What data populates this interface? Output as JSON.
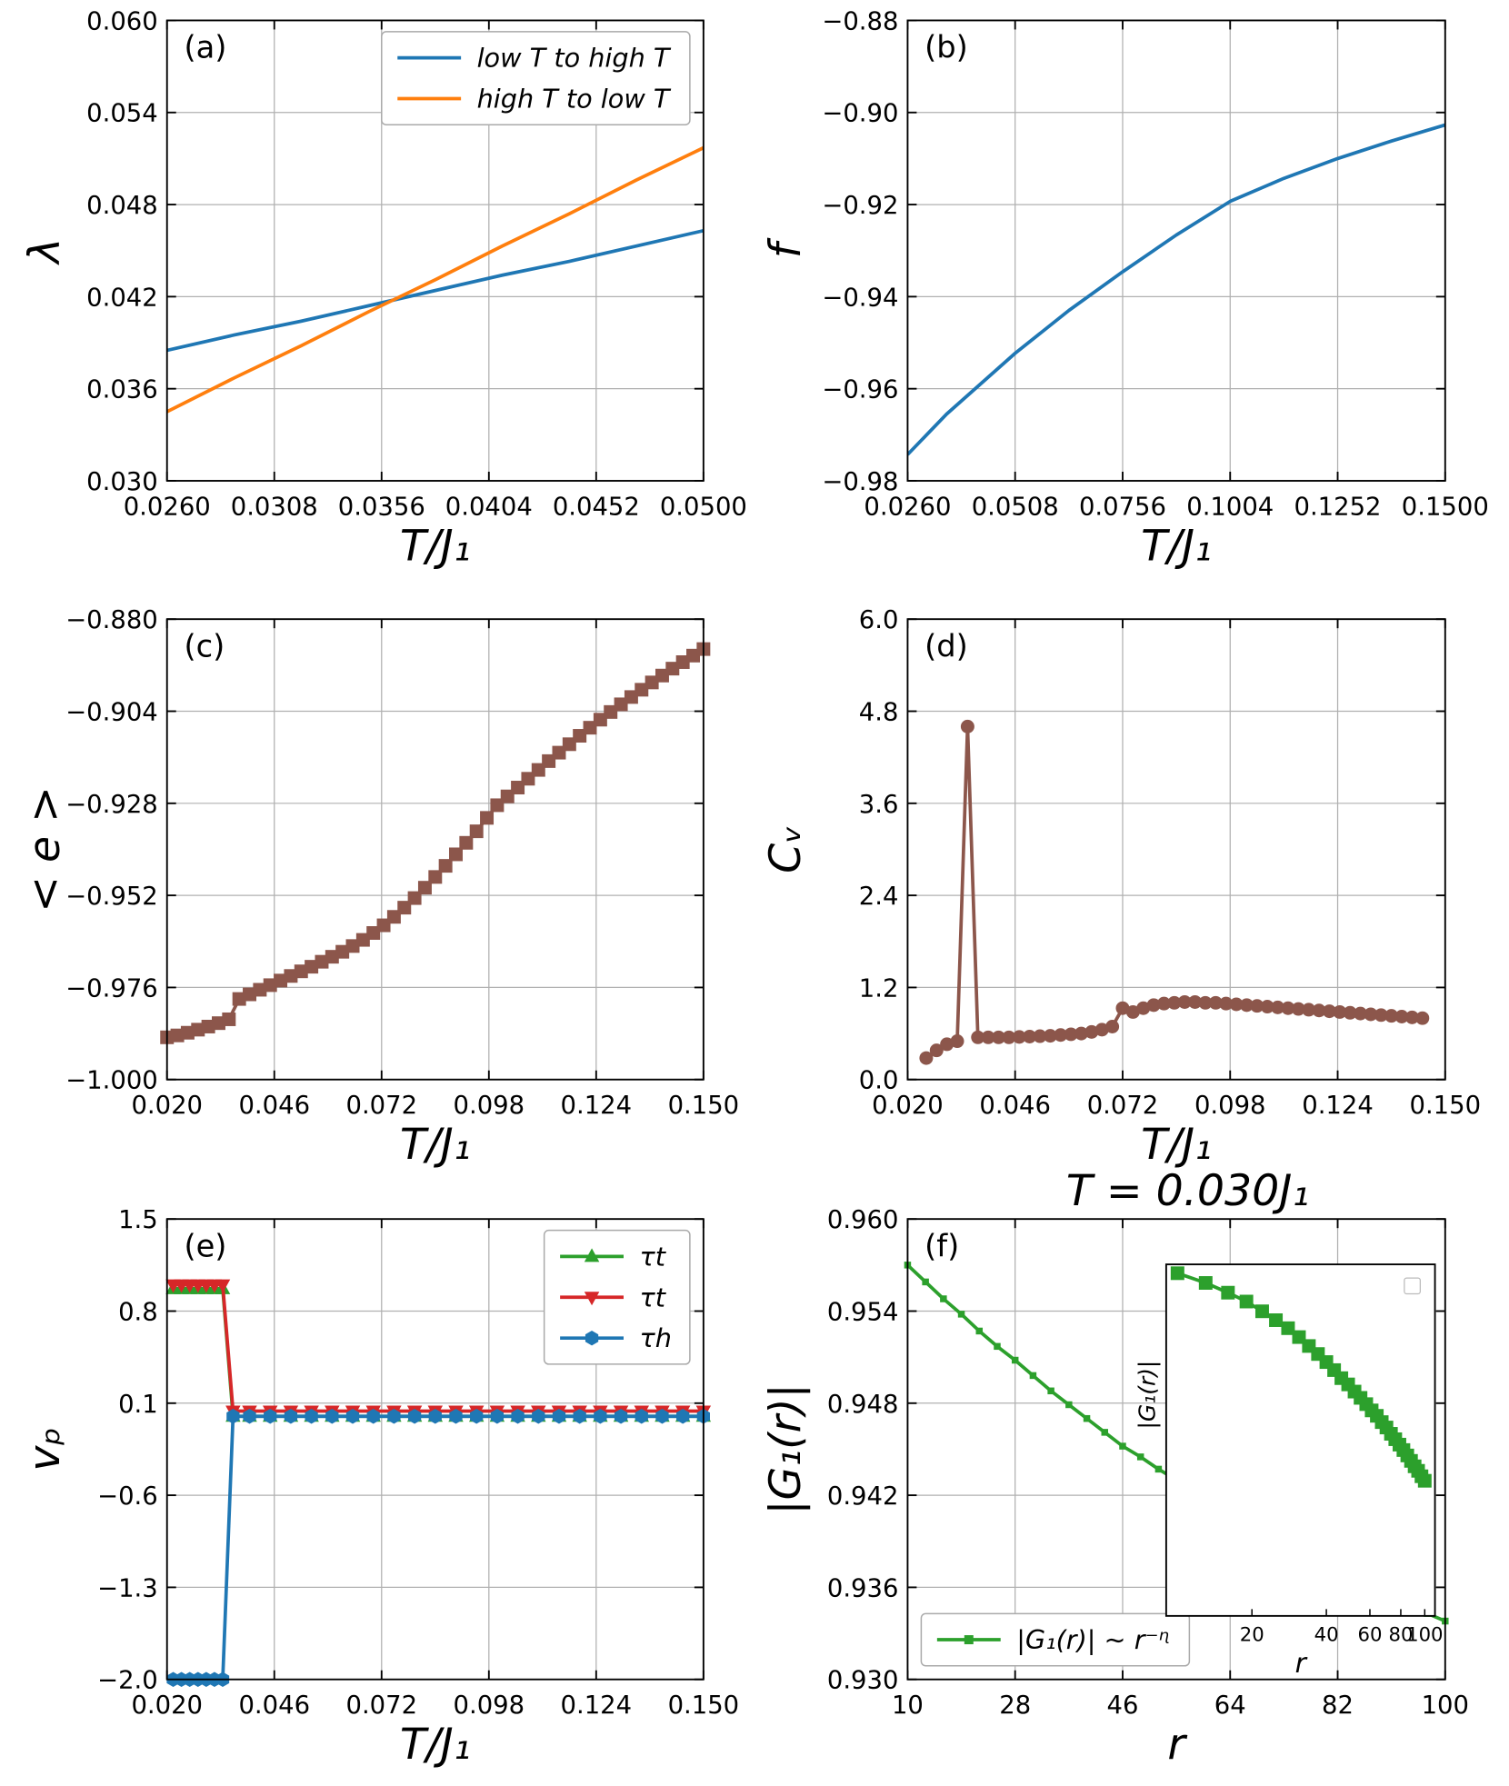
{
  "chart_data": [
    {
      "type": "line",
      "panel_label": "(a)",
      "xlabel": "T/J₁",
      "ylabel": "λ",
      "grid": true,
      "legend": "upper right",
      "xlim": [
        0.026,
        0.05
      ],
      "ylim": [
        0.03,
        0.06
      ],
      "xticks": [
        {
          "value": 0.026,
          "label": "0.0260"
        },
        0.0308,
        0.0356,
        0.0404,
        0.0452,
        {
          "value": 0.05,
          "label": "0.0500"
        }
      ],
      "yticks": [
        {
          "value": 0.03,
          "label": "0.030"
        },
        0.036,
        0.042,
        0.048,
        0.054,
        {
          "value": 0.06,
          "label": "0.060"
        }
      ],
      "x": [
        0.026,
        0.029,
        0.032,
        0.035,
        0.038,
        0.041,
        0.044,
        0.047,
        0.05
      ],
      "series": [
        {
          "name": "low T to high T",
          "color": "#1f77b4",
          "values": [
            0.0385,
            0.0395,
            0.0404,
            0.0414,
            0.0424,
            0.0434,
            0.0443,
            0.0453,
            0.0463
          ]
        },
        {
          "name": "high T to low T",
          "color": "#ff7f0e",
          "values": [
            0.0345,
            0.0367,
            0.0388,
            0.041,
            0.0431,
            0.0453,
            0.0474,
            0.0496,
            0.0517
          ]
        }
      ]
    },
    {
      "type": "line",
      "panel_label": "(b)",
      "xlabel": "T/J₁",
      "ylabel": "f",
      "grid": true,
      "xlim": [
        0.026,
        0.15
      ],
      "ylim": [
        -0.98,
        -0.88
      ],
      "xticks": [
        {
          "value": 0.026,
          "label": "0.0260"
        },
        0.0508,
        0.0756,
        0.1004,
        0.1252,
        {
          "value": 0.15,
          "label": "0.1500"
        }
      ],
      "yticks": [
        {
          "value": -0.98,
          "label": "−0.98"
        },
        {
          "value": -0.96,
          "label": "−0.96"
        },
        {
          "value": -0.94,
          "label": "−0.94"
        },
        {
          "value": -0.92,
          "label": "−0.92"
        },
        {
          "value": -0.9,
          "label": "−0.90"
        },
        {
          "value": -0.88,
          "label": "−0.88"
        }
      ],
      "x": [
        0.026,
        0.035,
        0.0508,
        0.0632,
        0.0756,
        0.088,
        0.1004,
        0.1128,
        0.1252,
        0.1376,
        0.15
      ],
      "series": [
        {
          "color": "#1f77b4",
          "values": [
            -0.9743,
            -0.9655,
            -0.9523,
            -0.943,
            -0.9346,
            -0.9266,
            -0.9193,
            -0.9143,
            -0.91,
            -0.9062,
            -0.9027
          ]
        }
      ]
    },
    {
      "type": "line",
      "panel_label": "(c)",
      "xlabel": "T/J₁",
      "ylabel": "< e >",
      "grid": true,
      "xlim": [
        0.02,
        0.15
      ],
      "ylim": [
        -1.0,
        -0.88
      ],
      "xticks": [
        {
          "value": 0.02,
          "label": "0.020"
        },
        0.046,
        0.072,
        0.098,
        0.124,
        {
          "value": 0.15,
          "label": "0.150"
        }
      ],
      "yticks": [
        {
          "value": -1.0,
          "label": "−1.000"
        },
        {
          "value": -0.976,
          "label": "−0.976"
        },
        {
          "value": -0.952,
          "label": "−0.952"
        },
        {
          "value": -0.928,
          "label": "−0.928"
        },
        {
          "value": -0.904,
          "label": "−0.904"
        },
        {
          "value": -0.88,
          "label": "−0.880"
        }
      ],
      "x": [
        0.02,
        0.0225,
        0.025,
        0.0275,
        0.03,
        0.0325,
        0.035,
        0.0375,
        0.04,
        0.0425,
        0.045,
        0.0475,
        0.05,
        0.0525,
        0.055,
        0.0575,
        0.06,
        0.0625,
        0.065,
        0.0675,
        0.07,
        0.0725,
        0.075,
        0.0775,
        0.08,
        0.0825,
        0.085,
        0.0875,
        0.09,
        0.0925,
        0.095,
        0.0975,
        0.1,
        0.1025,
        0.105,
        0.1075,
        0.11,
        0.1125,
        0.115,
        0.1175,
        0.12,
        0.1225,
        0.125,
        0.1275,
        0.13,
        0.1325,
        0.135,
        0.1375,
        0.14,
        0.1425,
        0.145,
        0.1475,
        0.15
      ],
      "series": [
        {
          "color": "#8c564b",
          "marker": "square",
          "values": [
            -0.989,
            -0.9885,
            -0.9878,
            -0.987,
            -0.9862,
            -0.9853,
            -0.9843,
            -0.979,
            -0.9778,
            -0.9766,
            -0.9754,
            -0.9742,
            -0.973,
            -0.9718,
            -0.9706,
            -0.9693,
            -0.968,
            -0.9667,
            -0.9652,
            -0.9636,
            -0.9618,
            -0.9598,
            -0.9576,
            -0.9552,
            -0.9527,
            -0.95,
            -0.9472,
            -0.9443,
            -0.9413,
            -0.9383,
            -0.9353,
            -0.9318,
            -0.9285,
            -0.9262,
            -0.9239,
            -0.9216,
            -0.9193,
            -0.917,
            -0.9148,
            -0.9126,
            -0.9104,
            -0.9083,
            -0.9062,
            -0.9042,
            -0.9022,
            -0.9003,
            -0.8984,
            -0.8965,
            -0.8947,
            -0.8929,
            -0.8912,
            -0.8895,
            -0.8878
          ]
        }
      ]
    },
    {
      "type": "line",
      "panel_label": "(d)",
      "xlabel": "T/J₁",
      "ylabel": "Cᵥ",
      "grid": true,
      "xlim": [
        0.02,
        0.15
      ],
      "ylim": [
        0.0,
        6.0
      ],
      "xticks": [
        {
          "value": 0.02,
          "label": "0.020"
        },
        0.046,
        0.072,
        0.098,
        0.124,
        {
          "value": 0.15,
          "label": "0.150"
        }
      ],
      "yticks": [
        {
          "value": 0,
          "label": "0.0"
        },
        1.2,
        2.4,
        3.6,
        4.8,
        {
          "value": 6,
          "label": "6.0"
        }
      ],
      "x": [
        0.0245,
        0.027,
        0.0295,
        0.032,
        0.0345,
        0.037,
        0.0395,
        0.042,
        0.0445,
        0.047,
        0.0495,
        0.052,
        0.0545,
        0.057,
        0.0595,
        0.062,
        0.0645,
        0.067,
        0.0695,
        0.072,
        0.0745,
        0.077,
        0.0795,
        0.082,
        0.0845,
        0.087,
        0.0895,
        0.092,
        0.0945,
        0.097,
        0.0995,
        0.102,
        0.1045,
        0.107,
        0.1095,
        0.112,
        0.1145,
        0.117,
        0.1195,
        0.122,
        0.1245,
        0.127,
        0.1295,
        0.132,
        0.1345,
        0.137,
        0.1395,
        0.142,
        0.1445
      ],
      "series": [
        {
          "color": "#8c564b",
          "marker": "circle",
          "values": [
            0.28,
            0.38,
            0.46,
            0.5,
            4.6,
            0.55,
            0.55,
            0.55,
            0.55,
            0.555,
            0.56,
            0.565,
            0.57,
            0.58,
            0.59,
            0.6,
            0.62,
            0.65,
            0.69,
            0.93,
            0.88,
            0.93,
            0.97,
            0.99,
            1.0,
            1.01,
            1.01,
            1.0,
            1.0,
            0.99,
            0.98,
            0.97,
            0.96,
            0.95,
            0.94,
            0.93,
            0.92,
            0.91,
            0.9,
            0.89,
            0.88,
            0.87,
            0.86,
            0.85,
            0.84,
            0.83,
            0.82,
            0.81,
            0.8
          ]
        }
      ]
    },
    {
      "type": "line",
      "panel_label": "(e)",
      "xlabel": "T/J₁",
      "ylabel": "vₚ",
      "grid": true,
      "legend": "upper right",
      "xlim": [
        0.02,
        0.15
      ],
      "ylim": [
        -2.0,
        1.5
      ],
      "xticks": [
        {
          "value": 0.02,
          "label": "0.020"
        },
        0.046,
        0.072,
        0.098,
        0.124,
        {
          "value": 0.15,
          "label": "0.150"
        }
      ],
      "yticks": [
        {
          "value": -2,
          "label": "−2.0"
        },
        {
          "value": -1.3,
          "label": "−1.3"
        },
        {
          "value": -0.6,
          "label": "−0.6"
        },
        0.1,
        0.8,
        1.5
      ],
      "x": [
        0.0215,
        0.0235,
        0.0255,
        0.0275,
        0.0295,
        0.0315,
        0.0335,
        0.036,
        0.04,
        0.045,
        0.05,
        0.055,
        0.06,
        0.065,
        0.07,
        0.075,
        0.08,
        0.085,
        0.09,
        0.095,
        0.1,
        0.105,
        0.11,
        0.115,
        0.12,
        0.125,
        0.13,
        0.135,
        0.14,
        0.145,
        0.15
      ],
      "series": [
        {
          "name": "τt",
          "color": "#2ca02c",
          "marker": "triangle-up",
          "values": [
            0.97,
            0.97,
            0.97,
            0.97,
            0.97,
            0.97,
            0.97,
            0.0,
            0.0,
            0.0,
            0.0,
            0.0,
            0.0,
            0.0,
            0.0,
            0.0,
            0.0,
            0.0,
            0.0,
            0.0,
            0.0,
            0.0,
            0.0,
            0.0,
            0.0,
            0.0,
            0.0,
            0.0,
            0.0,
            0.0,
            0.0
          ]
        },
        {
          "name": "τt",
          "color": "#d62728",
          "marker": "triangle-down",
          "values": [
            1.0,
            1.0,
            1.0,
            1.0,
            1.0,
            1.0,
            1.0,
            0.04,
            0.04,
            0.04,
            0.04,
            0.04,
            0.04,
            0.04,
            0.04,
            0.04,
            0.04,
            0.04,
            0.04,
            0.04,
            0.04,
            0.04,
            0.04,
            0.04,
            0.04,
            0.04,
            0.04,
            0.04,
            0.04,
            0.04,
            0.04
          ]
        },
        {
          "name": "τh",
          "color": "#1f77b4",
          "marker": "hexagon",
          "values": [
            -2.0,
            -2.0,
            -2.0,
            -2.0,
            -2.0,
            -2.0,
            -2.0,
            0.0,
            0.0,
            0.0,
            0.0,
            0.0,
            0.0,
            0.0,
            0.0,
            0.0,
            0.0,
            0.0,
            0.0,
            0.0,
            0.0,
            0.0,
            0.0,
            0.0,
            0.0,
            0.0,
            0.0,
            0.0,
            0.0,
            0.0,
            0.0
          ]
        }
      ]
    },
    {
      "type": "line",
      "panel_label": "(f)",
      "title": "T = 0.030J₁",
      "xlabel": "r",
      "ylabel": "|G₁(r)|",
      "grid": true,
      "legend": "lower left",
      "xlim": [
        10,
        100
      ],
      "ylim": [
        0.93,
        0.96
      ],
      "xticks": [
        10,
        28,
        46,
        64,
        82,
        100
      ],
      "yticks": [
        {
          "value": 0.93,
          "label": "0.930"
        },
        0.936,
        0.942,
        0.948,
        0.954,
        {
          "value": 0.96,
          "label": "0.960"
        }
      ],
      "x": [
        10,
        13,
        16,
        19,
        22,
        25,
        28,
        31,
        34,
        37,
        40,
        43,
        46,
        49,
        52,
        55,
        58,
        61,
        64,
        67,
        70,
        73,
        76,
        79,
        82,
        85,
        88,
        91,
        94,
        97,
        100
      ],
      "series": [
        {
          "name": "|G₁(r)| ∼ r⁻ᶯ",
          "color": "#2ca02c",
          "marker": "square",
          "values": [
            0.957,
            0.9559,
            0.9548,
            0.9538,
            0.9527,
            0.9517,
            0.9508,
            0.9498,
            0.9488,
            0.9479,
            0.947,
            0.9461,
            0.9452,
            0.9445,
            0.9437,
            0.943,
            0.9423,
            0.9416,
            0.941,
            0.9403,
            0.9397,
            0.939,
            0.9384,
            0.9378,
            0.9372,
            0.9366,
            0.936,
            0.9354,
            0.9349,
            0.9343,
            0.9338
          ]
        }
      ],
      "inset": {
        "xlabel": "r",
        "ylabel": "|G₁(r)|",
        "xscale": "log",
        "yscale": "log",
        "xlim": [
          9,
          110
        ],
        "ylim": [
          0.919,
          0.958
        ],
        "xticks": [
          20,
          40,
          60,
          80,
          100
        ]
      }
    }
  ]
}
